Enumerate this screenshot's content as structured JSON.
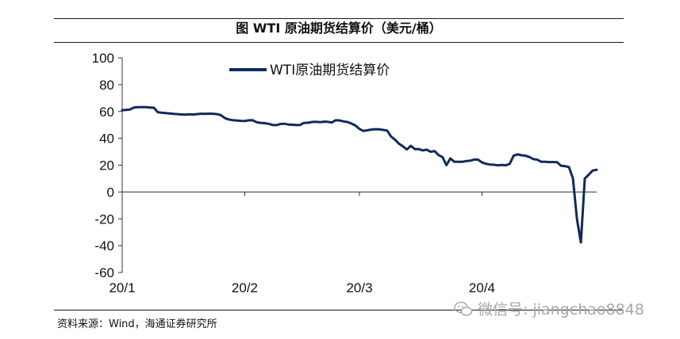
{
  "chart_data": {
    "type": "line",
    "title": "图  WTI 原油期货结算价（美元/桶）",
    "ylim": [
      -60,
      100
    ],
    "yticks": [
      100,
      80,
      60,
      40,
      20,
      0,
      -20,
      -40,
      -60
    ],
    "xticks": [
      {
        "label": "20/1",
        "x": 1
      },
      {
        "label": "20/2",
        "x": 32
      },
      {
        "label": "20/3",
        "x": 61
      },
      {
        "label": "20/4",
        "x": 92
      }
    ],
    "xlim": [
      1,
      121
    ],
    "legend": "top-left",
    "grid": false,
    "series": [
      {
        "name": "WTI原油期货结算价",
        "color": "#0f2a5c",
        "points": [
          [
            1,
            61
          ],
          [
            2,
            61.2
          ],
          [
            3,
            61.5
          ],
          [
            4,
            63
          ],
          [
            5,
            63.3
          ],
          [
            6,
            63.2
          ],
          [
            7,
            63.3
          ],
          [
            8,
            63
          ],
          [
            9,
            62.8
          ],
          [
            10,
            59.5
          ],
          [
            11,
            59
          ],
          [
            12,
            58.8
          ],
          [
            13,
            58.5
          ],
          [
            14,
            58.2
          ],
          [
            15,
            58
          ],
          [
            16,
            57.8
          ],
          [
            17,
            57.6
          ],
          [
            18,
            57.9
          ],
          [
            19,
            57.7
          ],
          [
            20,
            58.1
          ],
          [
            21,
            58.3
          ],
          [
            22,
            58.2
          ],
          [
            23,
            58.4
          ],
          [
            24,
            58.3
          ],
          [
            25,
            58
          ],
          [
            26,
            57.2
          ],
          [
            27,
            55
          ],
          [
            28,
            54
          ],
          [
            29,
            53.5
          ],
          [
            30,
            53.3
          ],
          [
            31,
            53
          ],
          [
            32,
            52.9
          ],
          [
            33,
            53.4
          ],
          [
            34,
            53.5
          ],
          [
            35,
            52
          ],
          [
            36,
            51.5
          ],
          [
            37,
            51.3
          ],
          [
            38,
            50.8
          ],
          [
            39,
            50
          ],
          [
            40,
            49.8
          ],
          [
            41,
            50.7
          ],
          [
            42,
            50.9
          ],
          [
            43,
            50.3
          ],
          [
            44,
            50.1
          ],
          [
            45,
            49.9
          ],
          [
            46,
            50
          ],
          [
            47,
            51.5
          ],
          [
            48,
            51.6
          ],
          [
            49,
            52.2
          ],
          [
            50,
            52.3
          ],
          [
            51,
            52
          ],
          [
            52,
            52.4
          ],
          [
            53,
            52.3
          ],
          [
            54,
            51.8
          ],
          [
            55,
            53.5
          ],
          [
            56,
            53.3
          ],
          [
            57,
            52.6
          ],
          [
            58,
            52.1
          ],
          [
            59,
            51
          ],
          [
            60,
            49.5
          ],
          [
            61,
            47
          ],
          [
            62,
            45.5
          ],
          [
            63,
            46
          ],
          [
            64,
            46.5
          ],
          [
            65,
            46.8
          ],
          [
            66,
            46.7
          ],
          [
            67,
            46.3
          ],
          [
            68,
            45.8
          ],
          [
            69,
            41.3
          ],
          [
            70,
            39
          ],
          [
            71,
            36
          ],
          [
            72,
            34
          ],
          [
            73,
            31.7
          ],
          [
            74,
            34.4
          ],
          [
            75,
            32
          ],
          [
            76,
            32
          ],
          [
            77,
            31
          ],
          [
            78,
            31.5
          ],
          [
            79,
            30
          ],
          [
            80,
            30.5
          ],
          [
            81,
            27.5
          ],
          [
            82,
            26
          ],
          [
            83,
            20
          ],
          [
            84,
            25
          ],
          [
            85,
            22.5
          ],
          [
            86,
            22.5
          ],
          [
            87,
            22.5
          ],
          [
            88,
            23
          ],
          [
            89,
            23.3
          ],
          [
            90,
            24.2
          ],
          [
            91,
            24.1
          ],
          [
            92,
            22
          ],
          [
            93,
            21
          ],
          [
            94,
            20.5
          ],
          [
            95,
            20.3
          ],
          [
            96,
            19.9
          ],
          [
            97,
            20.2
          ],
          [
            98,
            19.9
          ],
          [
            99,
            21
          ],
          [
            100,
            27
          ],
          [
            101,
            28
          ],
          [
            102,
            27.4
          ],
          [
            103,
            27
          ],
          [
            104,
            26
          ],
          [
            105,
            24.5
          ],
          [
            106,
            24
          ],
          [
            107,
            22.5
          ],
          [
            108,
            22.5
          ],
          [
            109,
            22.3
          ],
          [
            110,
            22.3
          ],
          [
            111,
            22.2
          ],
          [
            112,
            19.5
          ],
          [
            113,
            19.3
          ],
          [
            114,
            18.5
          ],
          [
            115,
            10
          ],
          [
            116,
            -20
          ],
          [
            117,
            -37.6
          ],
          [
            118,
            10
          ],
          [
            119,
            13
          ],
          [
            120,
            16
          ],
          [
            121,
            16.5
          ]
        ]
      }
    ]
  },
  "source": "资料来源：Wind，海通证券研究所",
  "watermark": "微信号: jiangchao8848"
}
